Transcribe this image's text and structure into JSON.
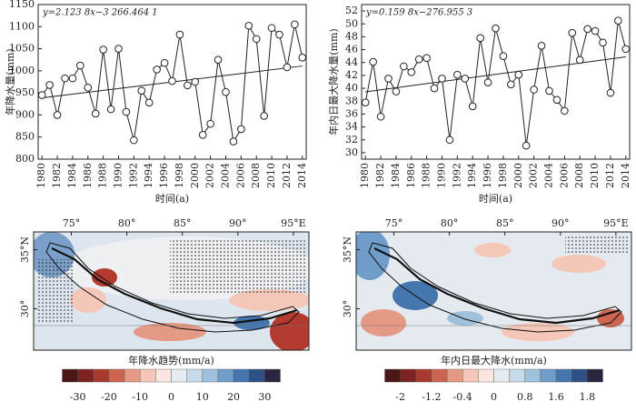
{
  "chart_data": [
    {
      "type": "line",
      "equation": "y=2.123 8x−3 266.464 1",
      "ylabel": "年降水量(mm)",
      "xlabel": "时间(a)",
      "x": [
        1980,
        1981,
        1982,
        1983,
        1984,
        1985,
        1986,
        1987,
        1988,
        1989,
        1990,
        1991,
        1992,
        1993,
        1994,
        1995,
        1996,
        1997,
        1998,
        1999,
        2000,
        2001,
        2002,
        2003,
        2004,
        2005,
        2006,
        2007,
        2008,
        2009,
        2010,
        2011,
        2012,
        2013,
        2014
      ],
      "values": [
        945,
        968,
        900,
        983,
        983,
        1012,
        962,
        903,
        1048,
        913,
        1050,
        907,
        843,
        955,
        928,
        1003,
        1018,
        977,
        1082,
        967,
        975,
        855,
        880,
        1025,
        952,
        840,
        868,
        1102,
        1072,
        898,
        1097,
        1082,
        1008,
        1105,
        1030
      ],
      "color": "#222222",
      "trend": {
        "x": [
          1980,
          2014
        ],
        "values": [
          938.7,
          1010.9
        ]
      },
      "xlim": [
        1979.5,
        2014.5
      ],
      "xticks": [
        1980,
        1982,
        1984,
        1986,
        1988,
        1990,
        1992,
        1994,
        1996,
        1998,
        2000,
        2002,
        2004,
        2006,
        2008,
        2010,
        2012,
        2014
      ],
      "ylim": [
        800,
        1150
      ],
      "yticks": [
        800,
        850,
        900,
        950,
        1000,
        1050,
        1100,
        1150
      ]
    },
    {
      "type": "line",
      "equation": "y=0.159 8x−276.955 3",
      "ylabel": "年内日最大降水量(mm)",
      "xlabel": "时间(a)",
      "x": [
        1980,
        1981,
        1982,
        1983,
        1984,
        1985,
        1986,
        1987,
        1988,
        1989,
        1990,
        1991,
        1992,
        1993,
        1994,
        1995,
        1996,
        1997,
        1998,
        1999,
        2000,
        2001,
        2002,
        2003,
        2004,
        2005,
        2006,
        2007,
        2008,
        2009,
        2010,
        2011,
        2012,
        2013,
        2014
      ],
      "values": [
        37.8,
        44.1,
        35.6,
        41.5,
        39.5,
        43.4,
        42.5,
        44.5,
        44.7,
        40.0,
        41.5,
        32.0,
        42.1,
        41.5,
        37.2,
        47.8,
        40.9,
        49.3,
        45.0,
        40.6,
        42.1,
        31.1,
        39.8,
        46.6,
        39.6,
        38.2,
        36.5,
        48.6,
        44.4,
        49.2,
        48.9,
        47.1,
        39.3,
        50.5,
        46.1
      ],
      "color": "#222222",
      "trend": {
        "x": [
          1980,
          2014
        ],
        "values": [
          39.45,
          44.88
        ]
      },
      "xlim": [
        1979.5,
        2014.5
      ],
      "xticks": [
        1980,
        1982,
        1984,
        1986,
        1988,
        1990,
        1992,
        1994,
        1996,
        1998,
        2000,
        2002,
        2004,
        2006,
        2008,
        2010,
        2012,
        2014
      ],
      "ylim": [
        29,
        53
      ],
      "yticks": [
        30,
        32,
        34,
        36,
        38,
        40,
        42,
        44,
        46,
        48,
        50,
        52
      ]
    },
    {
      "type": "map",
      "xlabel": "年降水趋势(mm/a)",
      "lonlim": [
        71.6,
        96.4
      ],
      "latlim": [
        26.5,
        36.5
      ],
      "lonticks": [
        {
          "value": 75,
          "label": "75°"
        },
        {
          "value": 80,
          "label": "80°"
        },
        {
          "value": 85,
          "label": "85°"
        },
        {
          "value": 90,
          "label": "90°"
        },
        {
          "value": 95,
          "label": "95°E"
        }
      ],
      "latticks": [
        {
          "value": 35,
          "label": "35°N"
        },
        {
          "value": 30,
          "label": "30°"
        }
      ],
      "colorbar": {
        "colors": [
          "#4a1616",
          "#7d2320",
          "#a93a2e",
          "#cd6650",
          "#e59a85",
          "#f4c7b8",
          "#fbe7df",
          "#e6edf3",
          "#c8dbe9",
          "#9fc1dc",
          "#6f9cc8",
          "#4676ae",
          "#2f4f86",
          "#2b2440"
        ],
        "ticks": [
          -30,
          -20,
          -10,
          0,
          10,
          20,
          30
        ]
      }
    },
    {
      "type": "map",
      "xlabel": "年内日最大降水(mm/a)",
      "lonlim": [
        71.6,
        96.4
      ],
      "latlim": [
        26.5,
        36.5
      ],
      "lonticks": [
        {
          "value": 75,
          "label": "75°"
        },
        {
          "value": 80,
          "label": "80°"
        },
        {
          "value": 85,
          "label": "85°"
        },
        {
          "value": 90,
          "label": "90°"
        },
        {
          "value": 95,
          "label": "95°E"
        }
      ],
      "latticks": [
        {
          "value": 35,
          "label": "35°N"
        },
        {
          "value": 30,
          "label": "30°"
        }
      ],
      "colorbar": {
        "colors": [
          "#4a1616",
          "#7d2320",
          "#a93a2e",
          "#cd6650",
          "#e59a85",
          "#f4c7b8",
          "#fbe7df",
          "#e6edf3",
          "#c8dbe9",
          "#9fc1dc",
          "#6f9cc8",
          "#4676ae",
          "#2f4f86",
          "#2b2440"
        ],
        "ticks": [
          -2,
          -1.2,
          -0.4,
          0,
          0.8,
          1.6,
          1.8
        ]
      }
    }
  ]
}
